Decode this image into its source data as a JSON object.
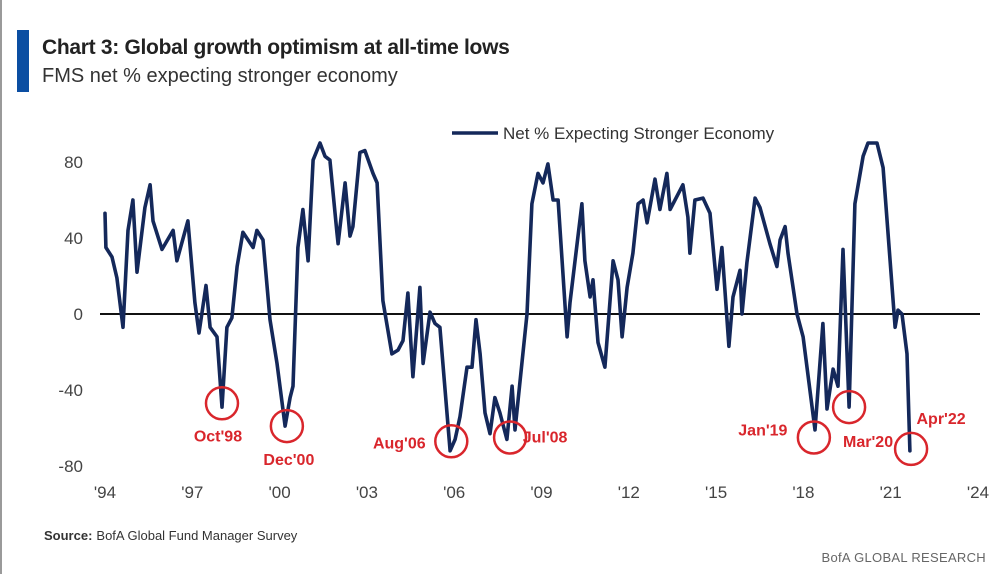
{
  "header": {
    "title": "Chart 3: Global growth optimism at all-time lows",
    "subtitle": "FMS net % expecting stronger economy"
  },
  "footer": {
    "source_label": "Source:",
    "source_text": "BofA Global Fund Manager Survey",
    "brand": "BofA GLOBAL RESEARCH"
  },
  "colors": {
    "accent": "#0b4ea2",
    "series": "#14285a",
    "annotation": "#d9262c",
    "zero_line": "#111111"
  },
  "chart_data": {
    "type": "line",
    "title": "Chart 3: Global growth optimism at all-time lows",
    "subtitle": "FMS net % expecting stronger economy",
    "xlabel": "",
    "ylabel": "",
    "xlim": [
      1994,
      2024
    ],
    "ylim": [
      -90,
      95
    ],
    "grid": false,
    "legend_position": "top-right",
    "x_ticks": [
      {
        "v": 1994,
        "label": "'94"
      },
      {
        "v": 1997,
        "label": "'97"
      },
      {
        "v": 2000,
        "label": "'00"
      },
      {
        "v": 2003,
        "label": "'03"
      },
      {
        "v": 2006,
        "label": "'06"
      },
      {
        "v": 2009,
        "label": "'09"
      },
      {
        "v": 2012,
        "label": "'12"
      },
      {
        "v": 2015,
        "label": "'15"
      },
      {
        "v": 2018,
        "label": "'18"
      },
      {
        "v": 2021,
        "label": "'21"
      },
      {
        "v": 2024,
        "label": "'24"
      }
    ],
    "y_ticks": [
      {
        "v": 80,
        "label": "80"
      },
      {
        "v": 40,
        "label": "40"
      },
      {
        "v": 0,
        "label": "0"
      },
      {
        "v": -40,
        "label": "-40"
      },
      {
        "v": -80,
        "label": "-80"
      }
    ],
    "series": [
      {
        "name": "Net % Expecting Stronger Economy",
        "points": [
          [
            1994.0,
            53
          ],
          [
            1994.03,
            35
          ],
          [
            1994.24,
            30
          ],
          [
            1994.41,
            19
          ],
          [
            1994.62,
            -7
          ],
          [
            1994.79,
            44
          ],
          [
            1994.96,
            60
          ],
          [
            1995.1,
            22
          ],
          [
            1995.37,
            56
          ],
          [
            1995.55,
            68
          ],
          [
            1995.65,
            49
          ],
          [
            1995.96,
            34
          ],
          [
            1996.34,
            44
          ],
          [
            1996.47,
            28
          ],
          [
            1996.85,
            49
          ],
          [
            1997.09,
            6
          ],
          [
            1997.23,
            -10
          ],
          [
            1997.47,
            15
          ],
          [
            1997.61,
            -7
          ],
          [
            1997.85,
            -12
          ],
          [
            1998.02,
            -49
          ],
          [
            1998.19,
            -7
          ],
          [
            1998.36,
            -2
          ],
          [
            1998.54,
            25
          ],
          [
            1998.74,
            43
          ],
          [
            1999.09,
            35
          ],
          [
            1999.22,
            44
          ],
          [
            1999.43,
            39
          ],
          [
            1999.67,
            -3
          ],
          [
            1999.91,
            -26
          ],
          [
            2000.19,
            -59
          ],
          [
            2000.36,
            -44
          ],
          [
            2000.46,
            -38
          ],
          [
            2000.63,
            35
          ],
          [
            2000.8,
            55
          ],
          [
            2000.98,
            28
          ],
          [
            2001.15,
            81
          ],
          [
            2001.39,
            90
          ],
          [
            2001.56,
            83
          ],
          [
            2001.73,
            81
          ],
          [
            2001.97,
            43
          ],
          [
            2002.01,
            37
          ],
          [
            2002.25,
            69
          ],
          [
            2002.42,
            41
          ],
          [
            2002.52,
            46
          ],
          [
            2002.76,
            85
          ],
          [
            2002.93,
            86
          ],
          [
            2003.21,
            74
          ],
          [
            2003.35,
            69
          ],
          [
            2003.55,
            7
          ],
          [
            2003.86,
            -21
          ],
          [
            2004.07,
            -19
          ],
          [
            2004.24,
            -14
          ],
          [
            2004.41,
            11
          ],
          [
            2004.58,
            -33
          ],
          [
            2004.82,
            14
          ],
          [
            2004.93,
            -26
          ],
          [
            2005.17,
            1
          ],
          [
            2005.34,
            -5
          ],
          [
            2005.51,
            -7
          ],
          [
            2005.86,
            -72
          ],
          [
            2006.03,
            -66
          ],
          [
            2006.2,
            -54
          ],
          [
            2006.44,
            -28
          ],
          [
            2006.61,
            -28
          ],
          [
            2006.75,
            -3
          ],
          [
            2006.89,
            -21
          ],
          [
            2007.06,
            -52
          ],
          [
            2007.23,
            -63
          ],
          [
            2007.4,
            -44
          ],
          [
            2007.57,
            -52
          ],
          [
            2007.81,
            -66
          ],
          [
            2007.99,
            -38
          ],
          [
            2008.09,
            -61
          ],
          [
            2008.5,
            0
          ],
          [
            2008.67,
            58
          ],
          [
            2008.88,
            74
          ],
          [
            2009.05,
            69
          ],
          [
            2009.22,
            79
          ],
          [
            2009.4,
            60
          ],
          [
            2009.57,
            60
          ],
          [
            2009.88,
            -12
          ],
          [
            2009.98,
            6
          ],
          [
            2010.39,
            58
          ],
          [
            2010.49,
            28
          ],
          [
            2010.67,
            9
          ],
          [
            2010.77,
            18
          ],
          [
            2010.94,
            -15
          ],
          [
            2011.18,
            -28
          ],
          [
            2011.46,
            28
          ],
          [
            2011.63,
            18
          ],
          [
            2011.77,
            -12
          ],
          [
            2011.94,
            14
          ],
          [
            2012.14,
            32
          ],
          [
            2012.32,
            58
          ],
          [
            2012.49,
            60
          ],
          [
            2012.63,
            48
          ],
          [
            2012.9,
            71
          ],
          [
            2013.07,
            55
          ],
          [
            2013.31,
            74
          ],
          [
            2013.42,
            55
          ],
          [
            2013.86,
            68
          ],
          [
            2014.03,
            51
          ],
          [
            2014.1,
            32
          ],
          [
            2014.27,
            60
          ],
          [
            2014.55,
            61
          ],
          [
            2014.79,
            53
          ],
          [
            2015.03,
            13
          ],
          [
            2015.2,
            35
          ],
          [
            2015.44,
            -17
          ],
          [
            2015.58,
            9
          ],
          [
            2015.82,
            23
          ],
          [
            2015.89,
            0
          ],
          [
            2016.06,
            27
          ],
          [
            2016.34,
            61
          ],
          [
            2016.51,
            56
          ],
          [
            2016.85,
            37
          ],
          [
            2017.09,
            25
          ],
          [
            2017.2,
            39
          ],
          [
            2017.37,
            46
          ],
          [
            2017.47,
            32
          ],
          [
            2017.78,
            0
          ],
          [
            2017.99,
            -12
          ],
          [
            2018.4,
            -61
          ],
          [
            2018.67,
            -5
          ],
          [
            2018.81,
            -50
          ],
          [
            2019.02,
            -29
          ],
          [
            2019.19,
            -38
          ],
          [
            2019.36,
            34
          ],
          [
            2019.57,
            -49
          ],
          [
            2019.77,
            58
          ],
          [
            2020.05,
            83
          ],
          [
            2020.22,
            90
          ],
          [
            2020.53,
            90
          ],
          [
            2020.74,
            77
          ],
          [
            2020.98,
            28
          ],
          [
            2021.15,
            -7
          ],
          [
            2021.25,
            2
          ],
          [
            2021.39,
            0
          ],
          [
            2021.56,
            -21
          ],
          [
            2021.66,
            -72
          ]
        ]
      }
    ],
    "annotations": [
      {
        "label": "Oct'98",
        "x": 1998.02,
        "y": -47
      },
      {
        "label": "Dec'00",
        "x": 2000.25,
        "y": -59
      },
      {
        "label": "Aug'06",
        "x": 2005.9,
        "y": -67
      },
      {
        "label": "Jul'08",
        "x": 2007.92,
        "y": -65
      },
      {
        "label": "Jan'19",
        "x": 2018.36,
        "y": -65
      },
      {
        "label": "Mar'20",
        "x": 2019.57,
        "y": -49
      },
      {
        "label": "Apr'22",
        "x": 2021.7,
        "y": -71
      }
    ]
  }
}
